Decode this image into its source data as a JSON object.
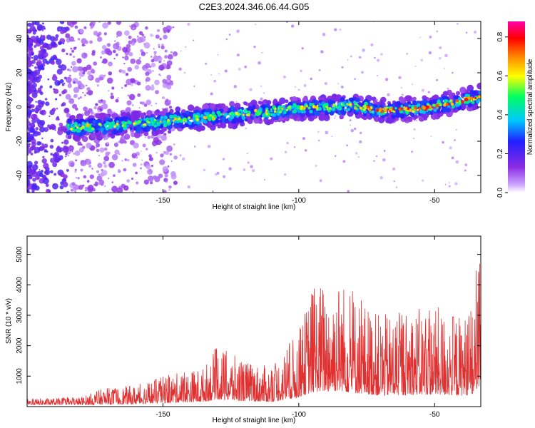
{
  "figure": {
    "title": "C2E3.2024.346.06.44.G05"
  },
  "chart_data": [
    {
      "type": "heatmap",
      "xlabel": "Height of straight line (km)",
      "ylabel": "Frequency (Hz)",
      "xlim": [
        -200,
        -33
      ],
      "ylim": [
        -50,
        50
      ],
      "x_ticks": [
        "-150",
        "-100",
        "-50"
      ],
      "x_tick_values": [
        -150,
        -100,
        -50
      ],
      "y_ticks": [
        "-40",
        "-20",
        "0",
        "20",
        "40"
      ],
      "y_tick_values": [
        -40,
        -20,
        0,
        20,
        40
      ],
      "colorbar": {
        "label": "Normalized spectral amplitude",
        "range": [
          0,
          0.88
        ],
        "ticks": [
          "0.0",
          "0.2",
          "0.4",
          "0.6",
          "0.8"
        ],
        "tick_values": [
          0,
          0.2,
          0.4,
          0.6,
          0.8
        ],
        "colors": [
          "#ffffff",
          "#8a2be2",
          "#2020ff",
          "#00c8ff",
          "#00ff60",
          "#ffff00",
          "#ff8000",
          "#ff0000",
          "#ff00aa"
        ]
      },
      "ridge_trend": [
        {
          "x": -183,
          "y": -12
        },
        {
          "x": -160,
          "y": -10
        },
        {
          "x": -140,
          "y": -7
        },
        {
          "x": -120,
          "y": -4
        },
        {
          "x": -100,
          "y": -1
        },
        {
          "x": -80,
          "y": 1
        },
        {
          "x": -70,
          "y": -2
        },
        {
          "x": -55,
          "y": -1
        },
        {
          "x": -45,
          "y": 2
        },
        {
          "x": -33,
          "y": 6
        }
      ],
      "grid": false
    },
    {
      "type": "line",
      "xlabel": "Height of straight line (km)",
      "ylabel": "SNR (10 * v/v)",
      "xlim": [
        -200,
        -33
      ],
      "ylim": [
        0,
        5600
      ],
      "x_ticks": [
        "-150",
        "-100",
        "-50"
      ],
      "x_tick_values": [
        -150,
        -100,
        -50
      ],
      "y_ticks": [
        "1000",
        "2000",
        "3000",
        "4000",
        "5000"
      ],
      "y_tick_values": [
        1000,
        2000,
        3000,
        4000,
        5000
      ],
      "series": [
        {
          "color": "#e03030",
          "envelope": [
            {
              "x": -200,
              "y": 260
            },
            {
              "x": -190,
              "y": 280
            },
            {
              "x": -180,
              "y": 320
            },
            {
              "x": -172,
              "y": 600
            },
            {
              "x": -160,
              "y": 700
            },
            {
              "x": -150,
              "y": 1000
            },
            {
              "x": -135,
              "y": 1300
            },
            {
              "x": -130,
              "y": 2000
            },
            {
              "x": -120,
              "y": 1500
            },
            {
              "x": -110,
              "y": 1300
            },
            {
              "x": -100,
              "y": 2500
            },
            {
              "x": -95,
              "y": 4000
            },
            {
              "x": -90,
              "y": 4200
            },
            {
              "x": -85,
              "y": 4300
            },
            {
              "x": -80,
              "y": 3800
            },
            {
              "x": -75,
              "y": 3400
            },
            {
              "x": -70,
              "y": 3000
            },
            {
              "x": -60,
              "y": 3200
            },
            {
              "x": -50,
              "y": 3300
            },
            {
              "x": -40,
              "y": 3000
            },
            {
              "x": -36,
              "y": 3200
            },
            {
              "x": -34,
              "y": 5500
            },
            {
              "x": -33,
              "y": 4400
            }
          ]
        }
      ],
      "grid": false
    }
  ]
}
